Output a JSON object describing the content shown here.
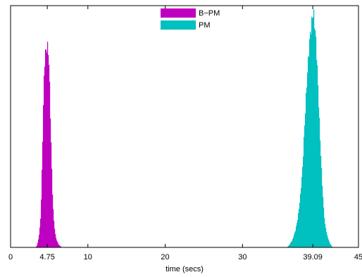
{
  "chart_data": {
    "type": "histogram",
    "title": "",
    "xlabel": "time (secs)",
    "ylabel": "",
    "xlim": [
      0,
      45
    ],
    "ylim": [
      0,
      1
    ],
    "grid": false,
    "legend_position": "top-center",
    "x_ticks": [
      {
        "value": 0,
        "label": "0"
      },
      {
        "value": 4.75,
        "label": "4.75"
      },
      {
        "value": 10,
        "label": "10"
      },
      {
        "value": 20,
        "label": "20"
      },
      {
        "value": 30,
        "label": "30"
      },
      {
        "value": 39.09,
        "label": "39.09"
      },
      {
        "value": 45,
        "label": "45"
      }
    ],
    "series": [
      {
        "name": "B−PM",
        "color": "#c000c0",
        "peak_x": 4.75,
        "x_range": [
          3.2,
          6.6
        ],
        "peak_height": 0.83,
        "points": [
          [
            3.2,
            0.0
          ],
          [
            3.4,
            0.01
          ],
          [
            3.6,
            0.04
          ],
          [
            3.8,
            0.1
          ],
          [
            3.9,
            0.18
          ],
          [
            4.0,
            0.3
          ],
          [
            4.1,
            0.45
          ],
          [
            4.2,
            0.6
          ],
          [
            4.3,
            0.72
          ],
          [
            4.4,
            0.79
          ],
          [
            4.5,
            0.81
          ],
          [
            4.6,
            0.82
          ],
          [
            4.7,
            0.83
          ],
          [
            4.8,
            0.82
          ],
          [
            4.9,
            0.78
          ],
          [
            5.0,
            0.68
          ],
          [
            5.1,
            0.55
          ],
          [
            5.2,
            0.42
          ],
          [
            5.3,
            0.3
          ],
          [
            5.4,
            0.2
          ],
          [
            5.5,
            0.13
          ],
          [
            5.7,
            0.06
          ],
          [
            5.9,
            0.03
          ],
          [
            6.2,
            0.01
          ],
          [
            6.6,
            0.0
          ]
        ]
      },
      {
        "name": "PM",
        "color": "#00c0c0",
        "peak_x": 39.09,
        "x_range": [
          35.7,
          41.6
        ],
        "peak_height": 0.97,
        "points": [
          [
            35.7,
            0.0
          ],
          [
            36.0,
            0.01
          ],
          [
            36.4,
            0.03
          ],
          [
            36.8,
            0.07
          ],
          [
            37.1,
            0.12
          ],
          [
            37.4,
            0.2
          ],
          [
            37.7,
            0.32
          ],
          [
            37.9,
            0.45
          ],
          [
            38.1,
            0.58
          ],
          [
            38.3,
            0.7
          ],
          [
            38.5,
            0.8
          ],
          [
            38.7,
            0.88
          ],
          [
            38.9,
            0.93
          ],
          [
            39.0,
            0.96
          ],
          [
            39.1,
            0.97
          ],
          [
            39.2,
            0.95
          ],
          [
            39.4,
            0.88
          ],
          [
            39.6,
            0.76
          ],
          [
            39.8,
            0.6
          ],
          [
            40.0,
            0.44
          ],
          [
            40.2,
            0.3
          ],
          [
            40.4,
            0.18
          ],
          [
            40.6,
            0.1
          ],
          [
            40.9,
            0.05
          ],
          [
            41.2,
            0.02
          ],
          [
            41.6,
            0.0
          ]
        ]
      }
    ]
  }
}
